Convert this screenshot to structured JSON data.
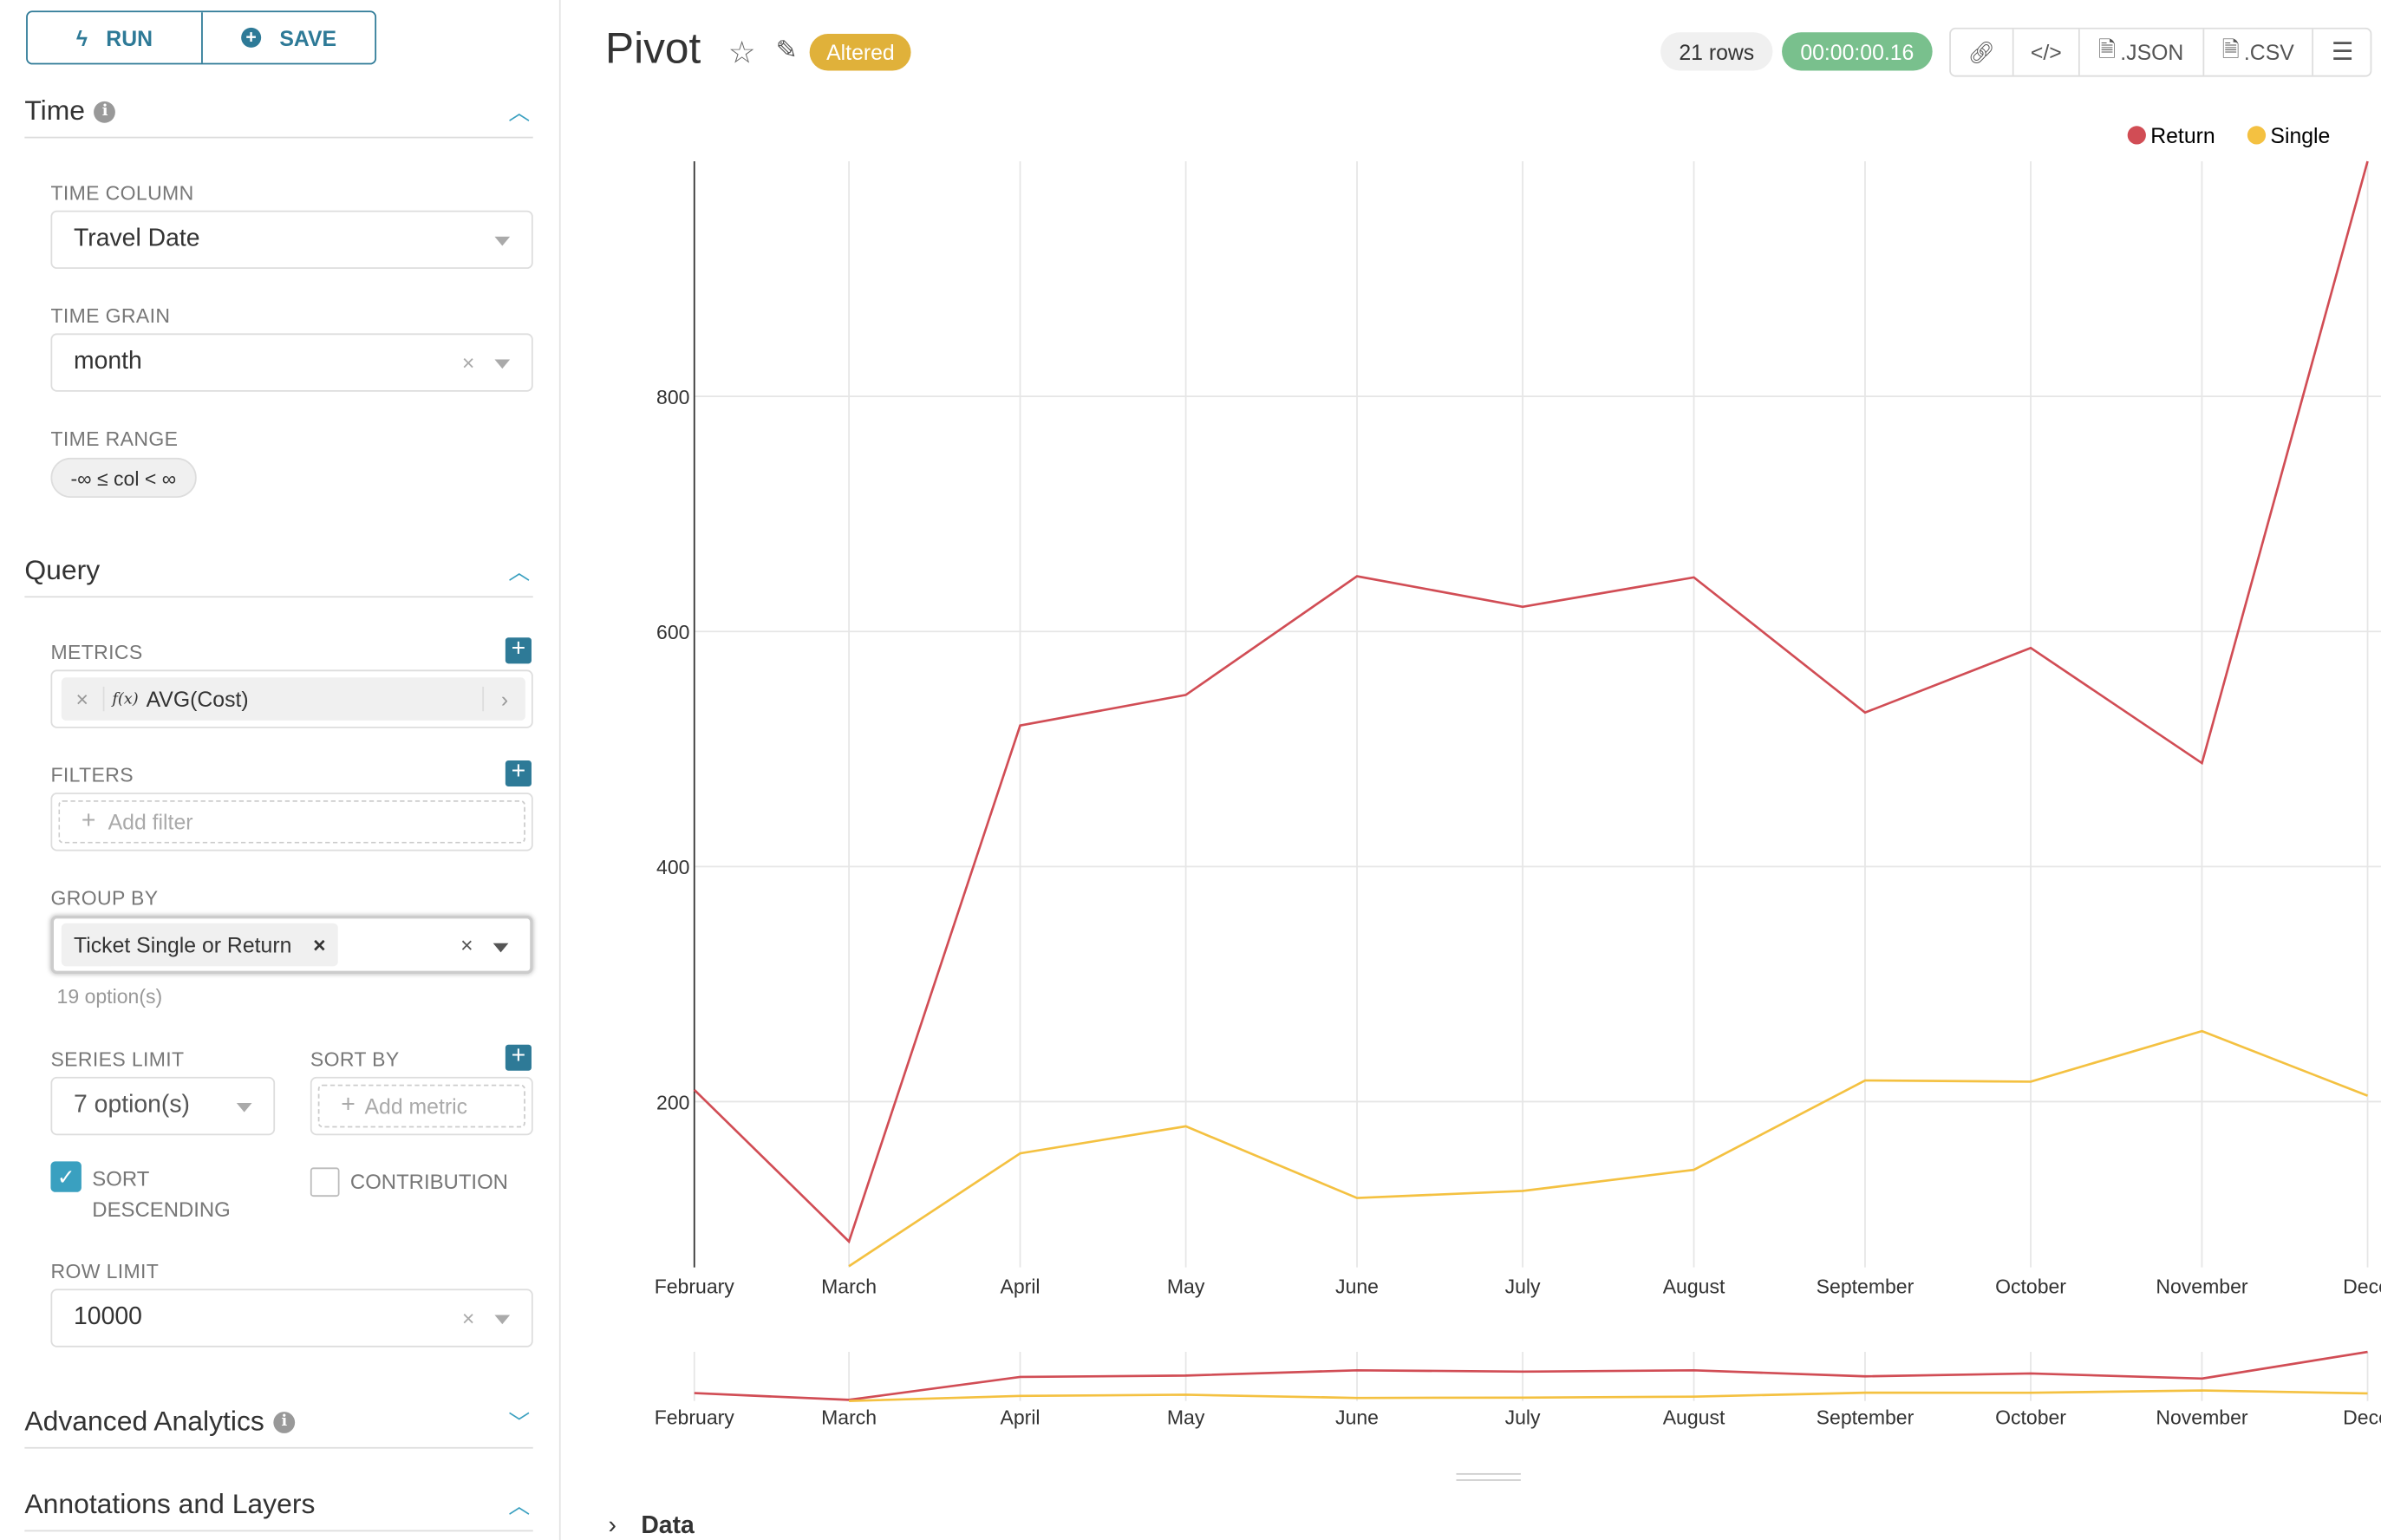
{
  "sidebar": {
    "run_label": "RUN",
    "save_label": "SAVE",
    "time": {
      "title": "Time",
      "time_column_label": "TIME COLUMN",
      "time_column_value": "Travel Date",
      "time_grain_label": "TIME GRAIN",
      "time_grain_value": "month",
      "time_range_label": "TIME RANGE",
      "time_range_value": "-∞ ≤ col < ∞"
    },
    "query": {
      "title": "Query",
      "metrics_label": "METRICS",
      "metric_value": "AVG(Cost)",
      "metric_fx": "f(x)",
      "filters_label": "FILTERS",
      "filter_placeholder": "Add filter",
      "group_by_label": "GROUP BY",
      "group_by_tag": "Ticket Single or Return",
      "group_by_options": "19 option(s)",
      "series_limit_label": "SERIES LIMIT",
      "series_limit_value": "7 option(s)",
      "sort_by_label": "SORT BY",
      "sort_by_placeholder": "Add metric",
      "sort_desc_label": "SORT DESCENDING",
      "sort_desc_checked": true,
      "contribution_label": "CONTRIBUTION",
      "contribution_checked": false,
      "row_limit_label": "ROW LIMIT",
      "row_limit_value": "10000"
    },
    "advanced_title": "Advanced Analytics",
    "annotations_title": "Annotations and Layers"
  },
  "header": {
    "title": "Pivot",
    "status_badge": "Altered",
    "rows": "21 rows",
    "timer": "00:00:00.16",
    "json_label": ".JSON",
    "csv_label": ".CSV"
  },
  "data_section_label": "Data",
  "colors": {
    "accent": "#2e7a97",
    "return": "#d14d55",
    "single": "#f4c141",
    "timer": "#79c08d",
    "altered": "#e0b13a"
  },
  "chart_data": {
    "type": "line",
    "categories": [
      "February",
      "March",
      "April",
      "May",
      "June",
      "July",
      "August",
      "September",
      "October",
      "November",
      "December"
    ],
    "x_tick_labels": [
      "February",
      "March",
      "April",
      "May",
      "June",
      "July",
      "August",
      "September",
      "October",
      "November",
      "Dece"
    ],
    "series": [
      {
        "name": "Return",
        "values": [
          210,
          81,
          520,
          546,
          647,
          621,
          646,
          531,
          586,
          488,
          1000
        ]
      },
      {
        "name": "Single",
        "values": [
          null,
          60,
          156,
          179,
          118,
          124,
          142,
          218,
          217,
          260,
          205
        ]
      }
    ],
    "y_ticks": [
      200,
      400,
      600,
      800
    ],
    "ylim": [
      59,
      1000
    ],
    "grid": true,
    "legend": "top-right",
    "brush_preview": true
  }
}
